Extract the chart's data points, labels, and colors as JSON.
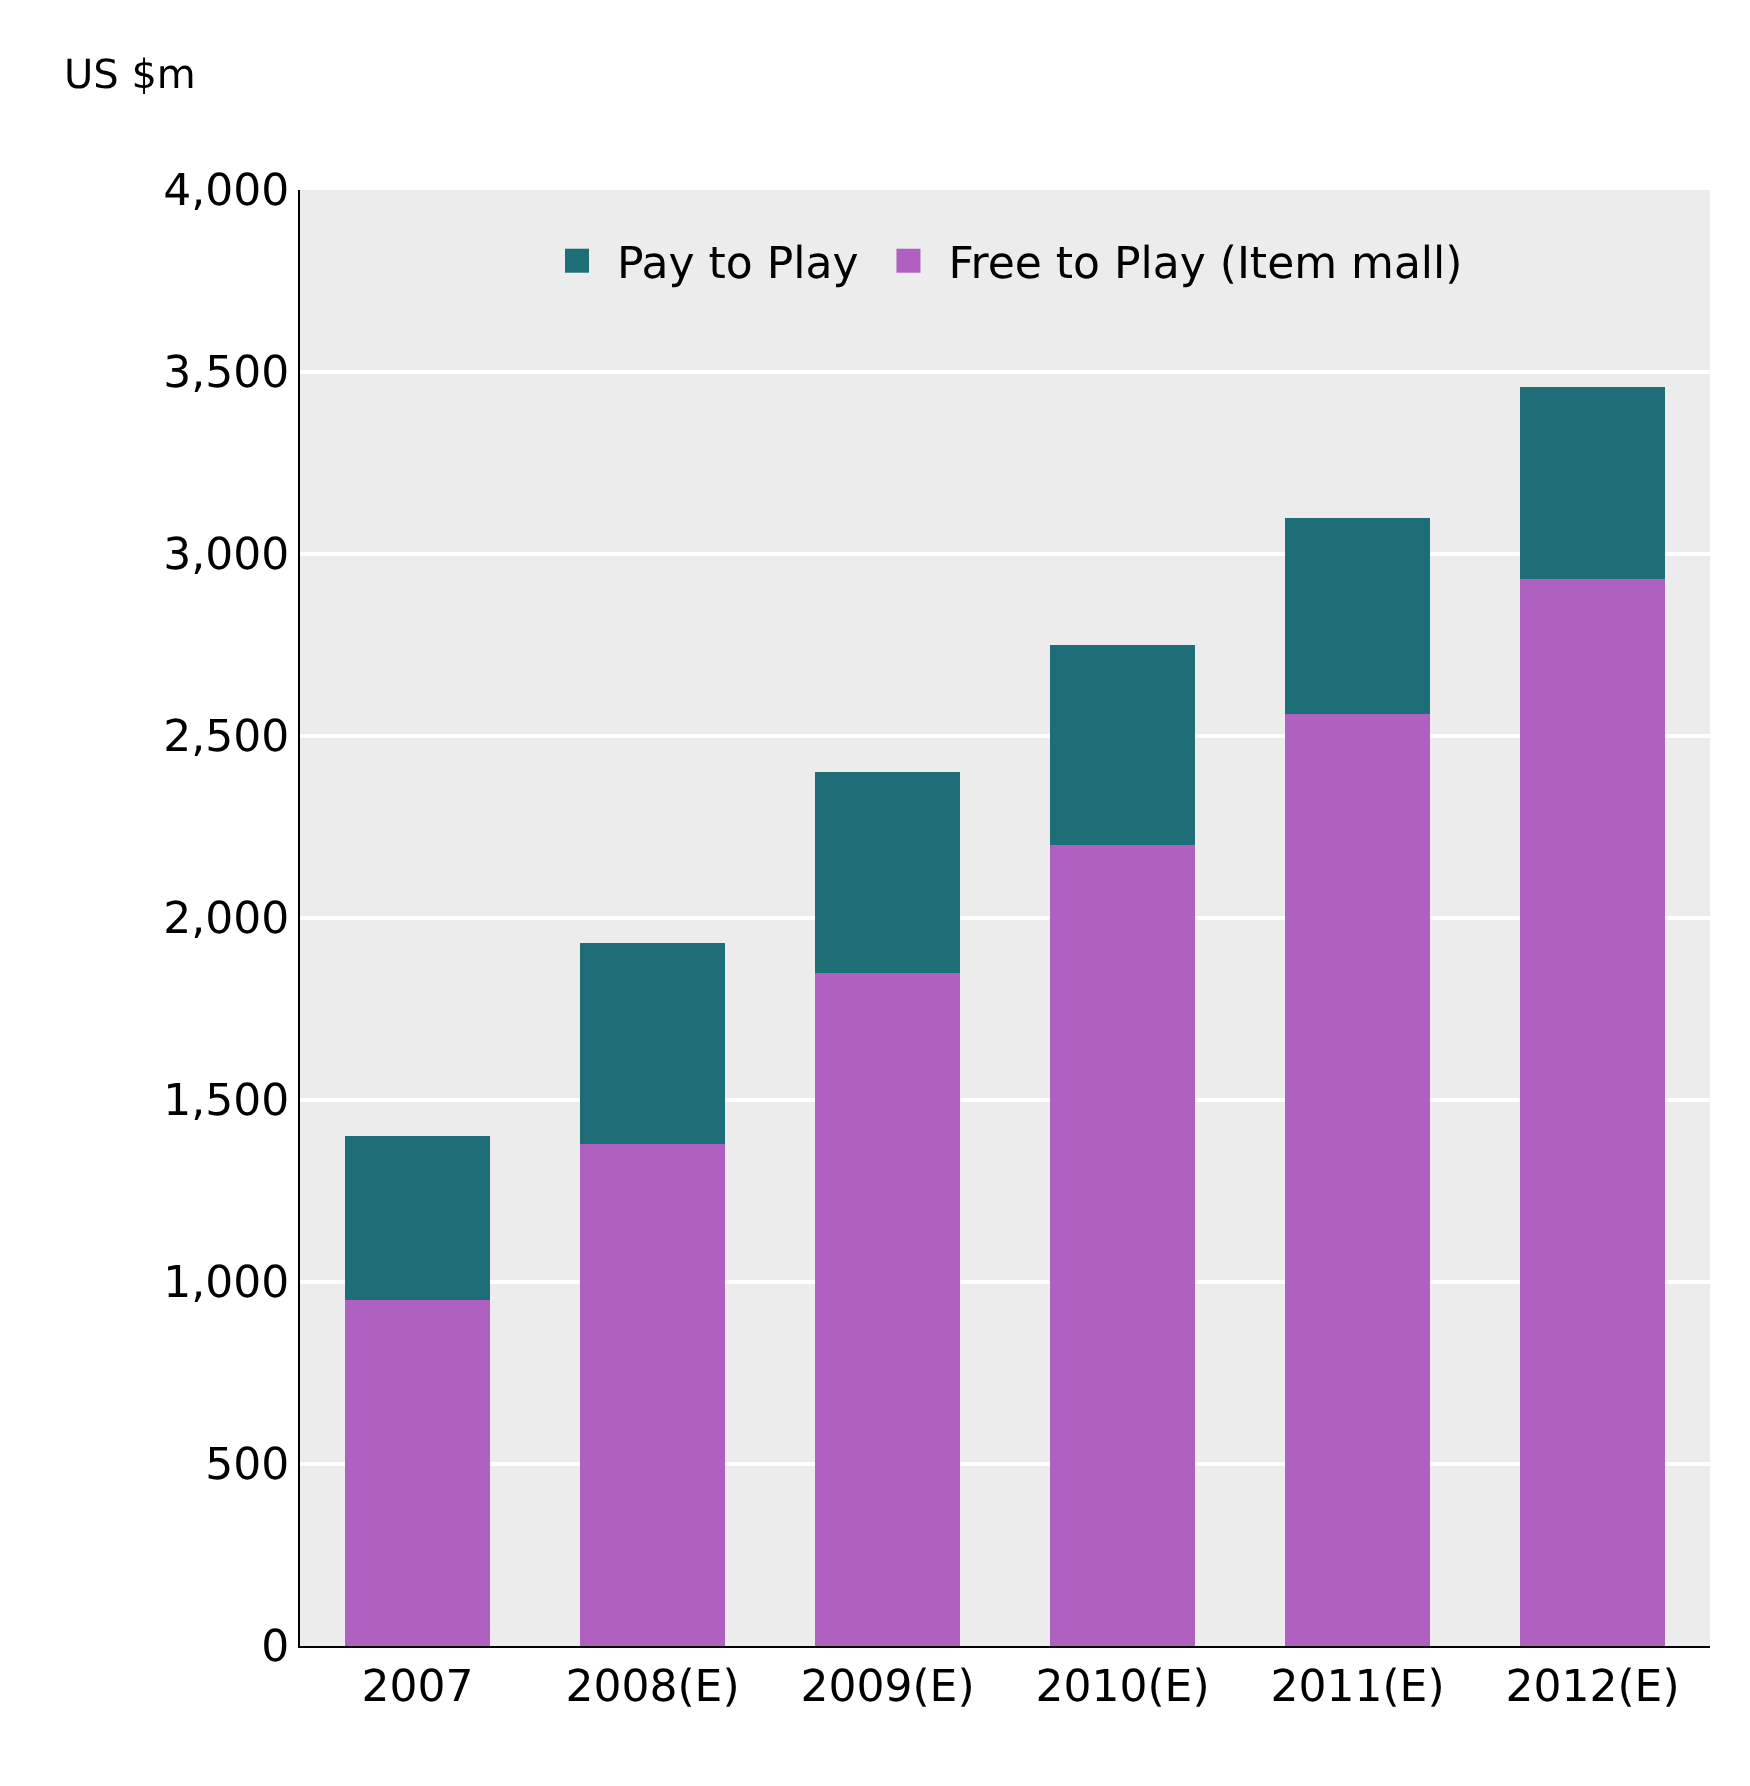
{
  "chart_data": {
    "type": "bar",
    "stacked": true,
    "ylabel": "US $m",
    "categories": [
      "2007",
      "2008(E)",
      "2009(E)",
      "2010(E)",
      "2011(E)",
      "2012(E)"
    ],
    "series": [
      {
        "name": "Free to Play (Item mall)",
        "color": "#b060c0",
        "values": [
          950,
          1380,
          1850,
          2200,
          2560,
          2930
        ]
      },
      {
        "name": "Pay to Play",
        "color": "#1e6e78",
        "values": [
          450,
          550,
          550,
          550,
          540,
          530
        ]
      }
    ],
    "ylim": [
      0,
      4000
    ],
    "yticks": [
      {
        "value": 0,
        "label": "0"
      },
      {
        "value": 500,
        "label": "500"
      },
      {
        "value": 1000,
        "label": "1,000"
      },
      {
        "value": 1500,
        "label": "1,500"
      },
      {
        "value": 2000,
        "label": "2,000"
      },
      {
        "value": 2500,
        "label": "2,500"
      },
      {
        "value": 3000,
        "label": "3,000"
      },
      {
        "value": 3500,
        "label": "3,500"
      },
      {
        "value": 4000,
        "label": "4,000"
      }
    ],
    "grid": "y",
    "legend": "top"
  }
}
